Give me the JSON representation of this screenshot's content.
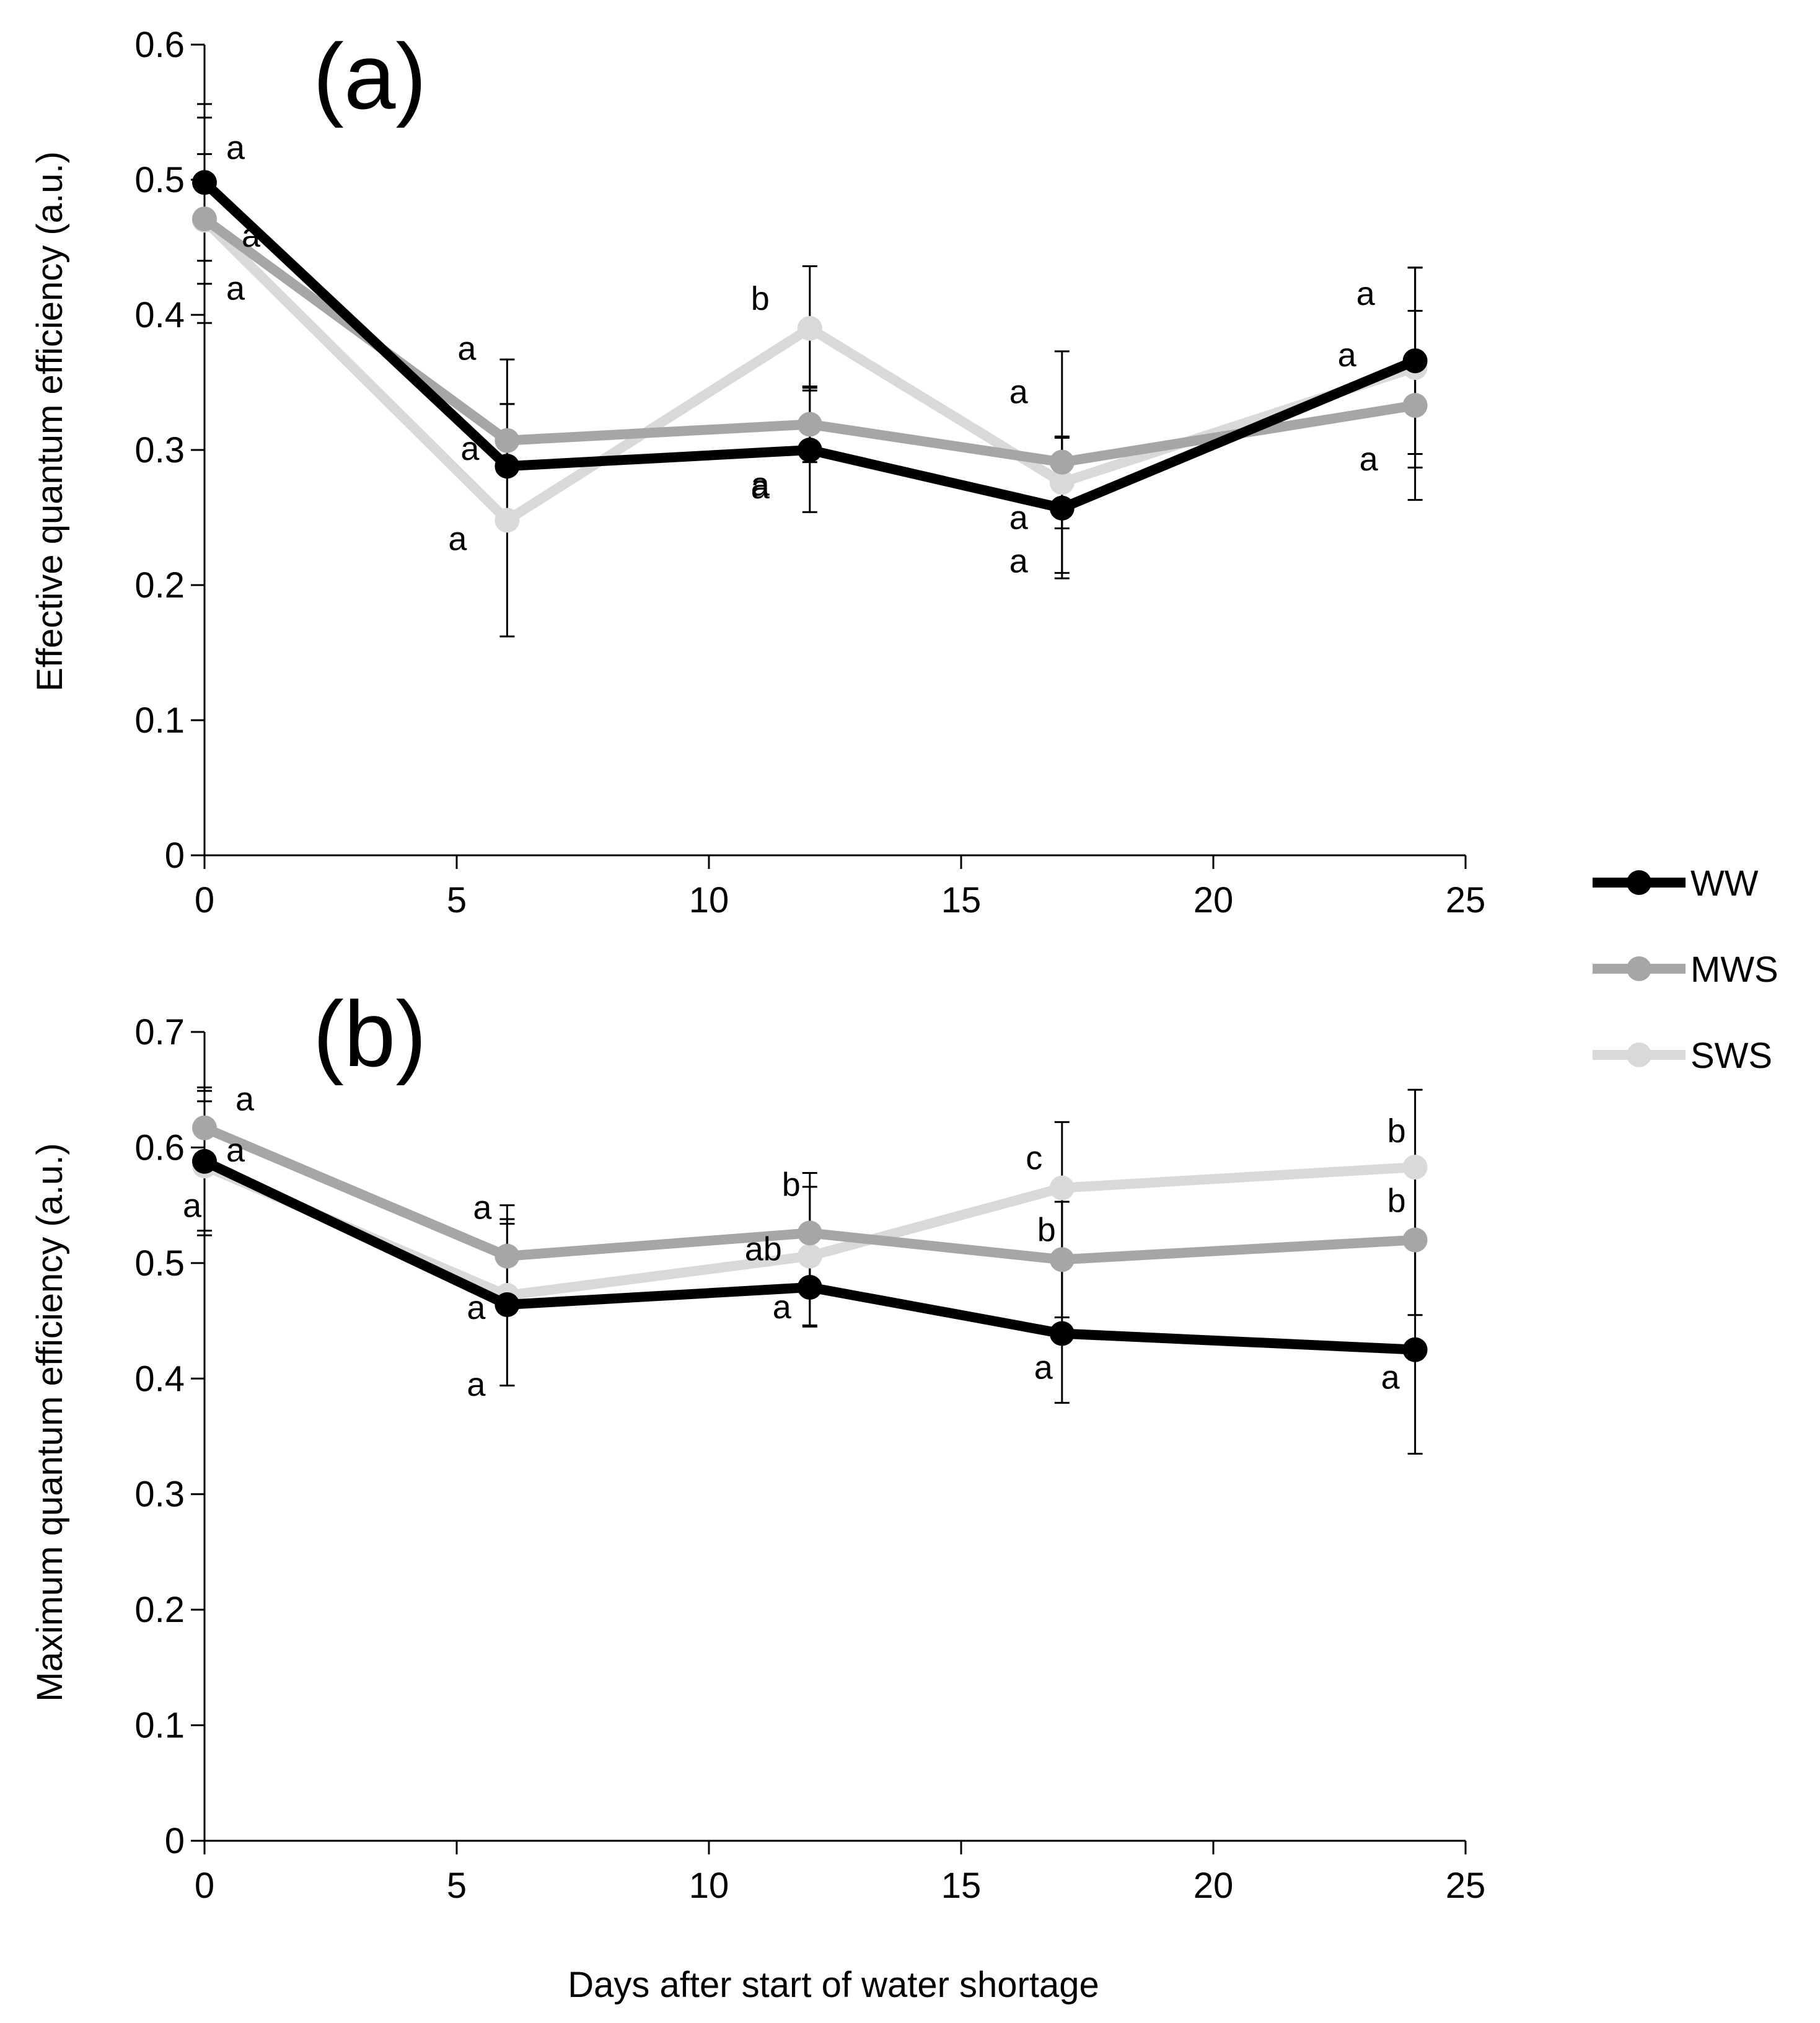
{
  "legend": {
    "position": "right",
    "items": [
      {
        "name": "WW",
        "color": "#000000"
      },
      {
        "name": "MWS",
        "color": "#a6a6a6"
      },
      {
        "name": "SWS",
        "color": "#d9d9d9"
      }
    ]
  },
  "xlabel": "Days after start of water shortage",
  "chart_data": [
    {
      "type": "line",
      "panel_label": "(a)",
      "ylabel": "Effective quantum efficiency (a.u.)",
      "x": [
        0,
        6,
        12,
        17,
        24
      ],
      "xlim": [
        0,
        25
      ],
      "xticks": [
        "0",
        "5",
        "10",
        "15",
        "20",
        "25"
      ],
      "ylim": [
        0,
        0.6
      ],
      "yticks": [
        "0",
        "0.1",
        "0.2",
        "0.3",
        "0.4",
        "0.5",
        "0.6"
      ],
      "grid": false,
      "series": [
        {
          "name": "WW",
          "color": "#000000",
          "values": [
            0.498,
            0.288,
            0.3,
            0.257,
            0.366
          ],
          "error": [
            0.058,
            0.046,
            0.046,
            0.052,
            0.069
          ],
          "letters": [
            "a",
            "a",
            "a",
            "a",
            "a"
          ]
        },
        {
          "name": "MWS",
          "color": "#a6a6a6",
          "values": [
            0.471,
            0.307,
            0.319,
            0.291,
            0.333
          ],
          "error": [
            0.048,
            0.06,
            0.028,
            0.082,
            0.07
          ],
          "letters": [
            "a",
            "a",
            "a",
            "a",
            "a"
          ]
        },
        {
          "name": "SWS",
          "color": "#d9d9d9",
          "values": [
            0.47,
            0.248,
            0.39,
            0.276,
            0.361
          ],
          "error": [
            0.076,
            0.086,
            0.046,
            0.034,
            0.074
          ],
          "letters": [
            "a",
            "a",
            "b",
            "a",
            "a"
          ]
        }
      ]
    },
    {
      "type": "line",
      "panel_label": "(b)",
      "ylabel": "Maximum quantum efficiency (a.u.)",
      "x": [
        0,
        6,
        12,
        17,
        24
      ],
      "xlim": [
        0,
        25
      ],
      "xticks": [
        "0",
        "5",
        "10",
        "15",
        "20",
        "25"
      ],
      "ylim": [
        0,
        0.7
      ],
      "yticks": [
        "0",
        "0.1",
        "0.2",
        "0.3",
        "0.4",
        "0.5",
        "0.6",
        "0.7"
      ],
      "grid": false,
      "series": [
        {
          "name": "WW",
          "color": "#000000",
          "values": [
            0.588,
            0.464,
            0.479,
            0.439,
            0.425
          ],
          "error": [
            0.064,
            0.07,
            0.034,
            0.06,
            0.09
          ],
          "letters": [
            "a",
            "a",
            "a",
            "a",
            "a"
          ]
        },
        {
          "name": "MWS",
          "color": "#a6a6a6",
          "values": [
            0.617,
            0.506,
            0.526,
            0.503,
            0.52
          ],
          "error": [
            0.032,
            0.032,
            0.052,
            0.05,
            0.065
          ],
          "letters": [
            "a",
            "a",
            "b",
            "b",
            "b"
          ]
        },
        {
          "name": "SWS",
          "color": "#d9d9d9",
          "values": [
            0.584,
            0.472,
            0.506,
            0.565,
            0.583
          ],
          "error": [
            0.056,
            0.078,
            0.06,
            0.057,
            0.067
          ],
          "letters": [
            "a",
            "a",
            "ab",
            "c",
            "b"
          ]
        }
      ]
    }
  ]
}
